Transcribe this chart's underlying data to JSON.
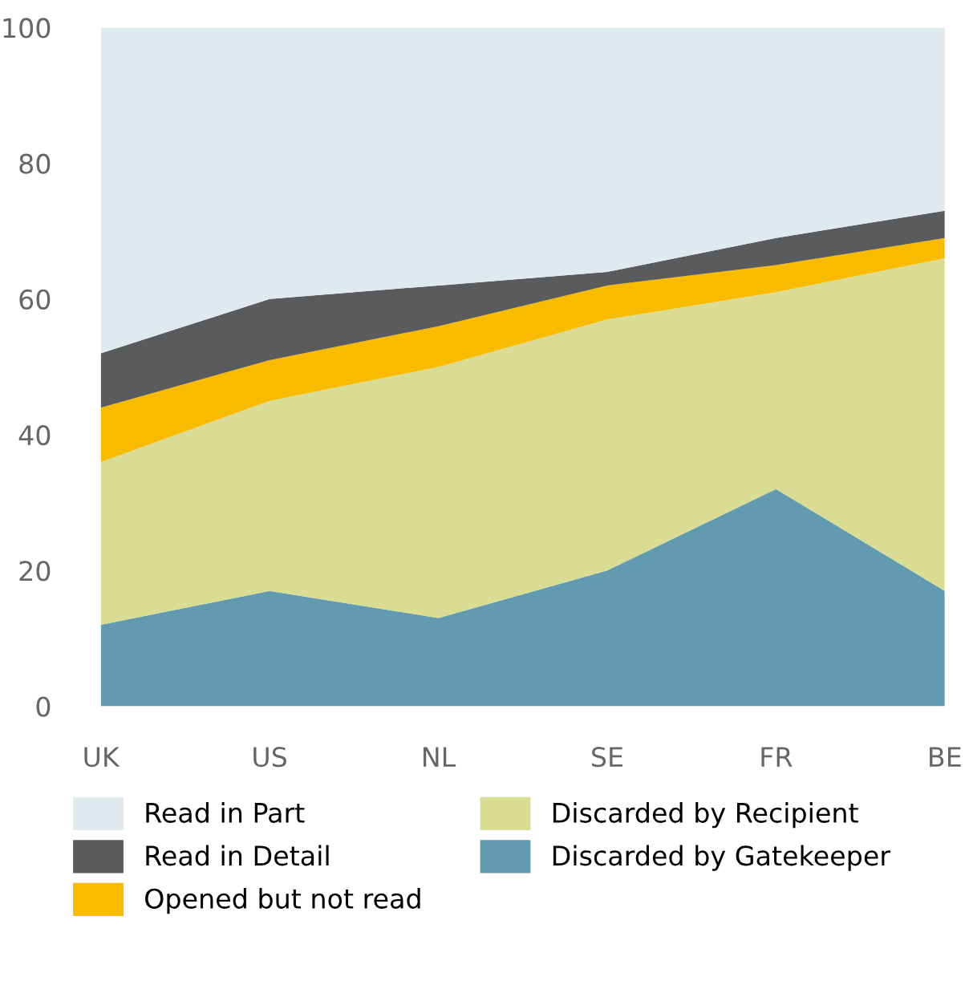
{
  "chart_data": {
    "type": "area",
    "stacked": true,
    "categories": [
      "UK",
      "US",
      "NL",
      "SE",
      "FR",
      "BE"
    ],
    "series": [
      {
        "name": "Discarded by Gatekeeper",
        "color": "#629bb0",
        "values": [
          12,
          17,
          13,
          20,
          32,
          17
        ]
      },
      {
        "name": "Discarded by Recipient",
        "color": "#dbdc93",
        "values": [
          24,
          28,
          37,
          37,
          29,
          49
        ]
      },
      {
        "name": "Opened but not read",
        "color": "#f8bb00",
        "values": [
          8,
          6,
          6,
          5,
          4,
          3
        ]
      },
      {
        "name": "Read in Detail",
        "color": "#5a5b5d",
        "values": [
          8,
          9,
          6,
          2,
          4,
          4
        ]
      },
      {
        "name": "Read in Part",
        "color": "#dfeaef",
        "values": [
          48,
          40,
          38,
          36,
          31,
          27
        ]
      }
    ],
    "ylim": [
      0,
      100
    ],
    "yticks": [
      0,
      20,
      40,
      60,
      80,
      100
    ],
    "grid": false,
    "legend": "bottom"
  }
}
